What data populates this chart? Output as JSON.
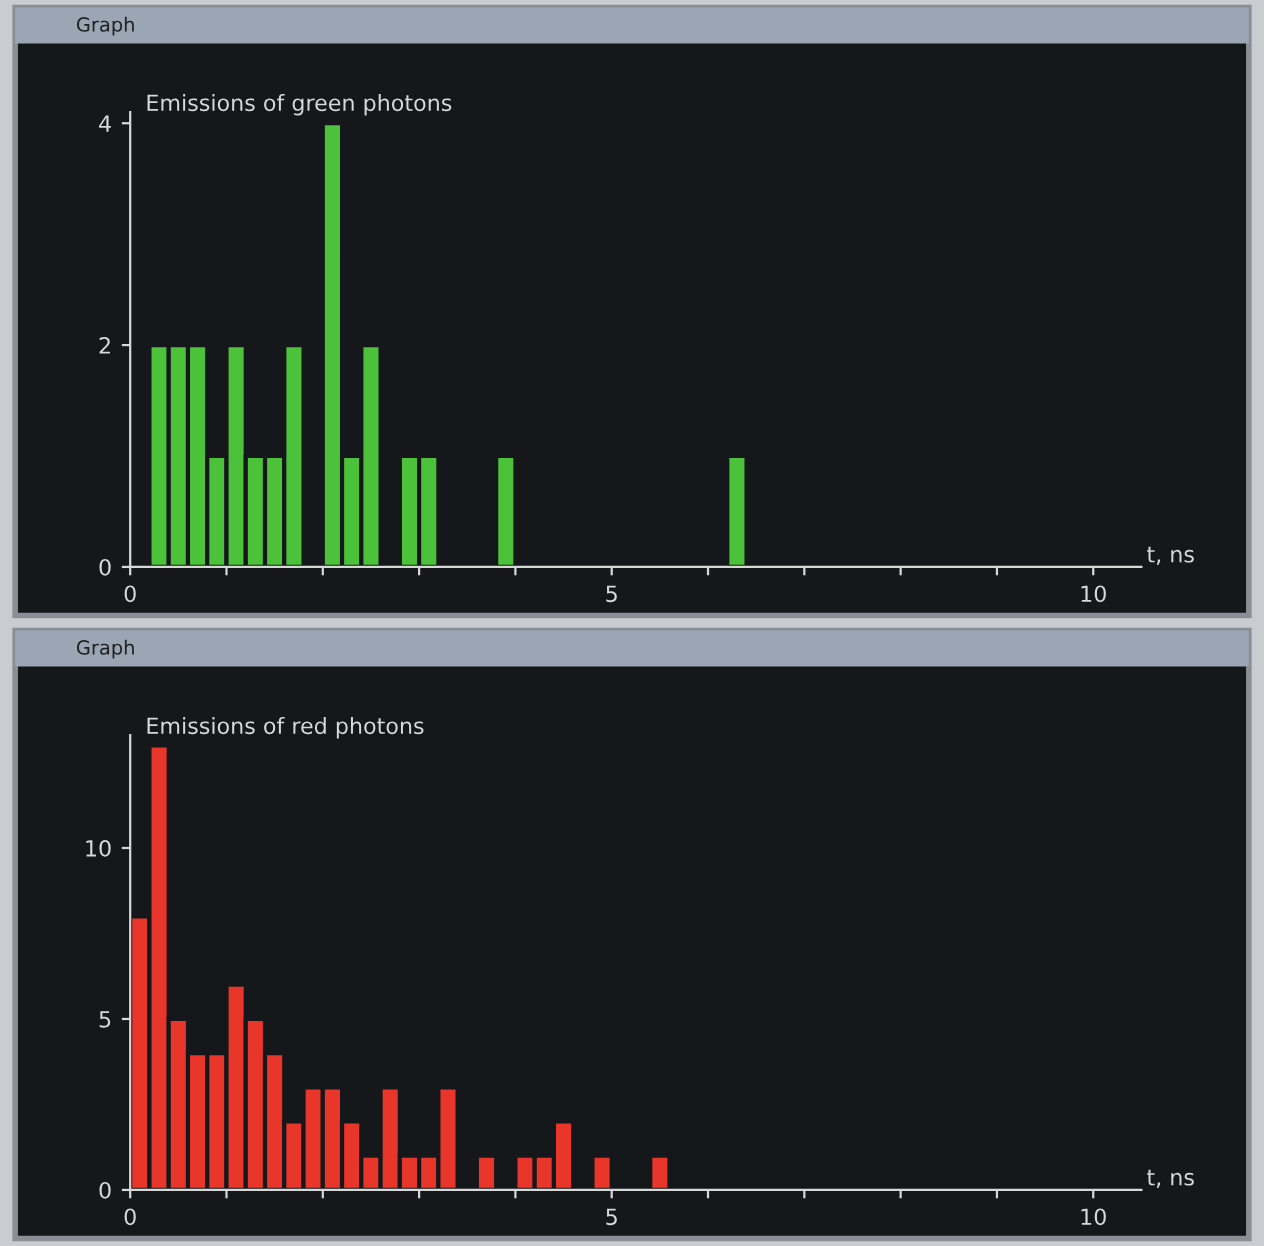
{
  "chart_data": [
    {
      "type": "histogram",
      "title": "Emissions of green photons",
      "xlabel": "t, ns",
      "annotations": [
        "Graph"
      ],
      "color": "#4cc23a",
      "bins": [
        0,
        0.2,
        0.4,
        0.6,
        0.8,
        1.0,
        1.2,
        1.4,
        1.6,
        1.8,
        2.0,
        2.2,
        2.4,
        2.6,
        2.8,
        3.0,
        3.2,
        3.4,
        3.6,
        3.8,
        4.0,
        4.2,
        4.4,
        4.6,
        4.8,
        5.0,
        5.2,
        5.4,
        5.6,
        5.8,
        6.0,
        6.2,
        6.4,
        6.6,
        6.8,
        7.0,
        7.2,
        7.4,
        7.6,
        7.8,
        8.0,
        8.2,
        8.4,
        8.6,
        8.8,
        9.0,
        9.2,
        9.4,
        9.6,
        9.8,
        10.0
      ],
      "values": [
        0,
        2,
        2,
        2,
        1,
        2,
        1,
        1,
        2,
        0,
        4,
        1,
        2,
        0,
        1,
        1,
        0,
        0,
        0,
        1,
        0,
        0,
        0,
        0,
        0,
        0,
        0,
        0,
        0,
        0,
        0,
        1,
        0,
        0,
        0,
        0,
        0,
        0,
        0,
        0,
        0,
        0,
        0,
        0,
        0,
        0,
        0,
        0,
        0,
        0
      ],
      "xlim": [
        0,
        10.5
      ],
      "xticks": [
        0,
        {
          "value": 1,
          "label": null
        },
        {
          "value": 2,
          "label": null
        },
        {
          "value": 3,
          "label": null
        },
        {
          "value": 4,
          "label": null
        },
        5,
        {
          "value": 6,
          "label": null
        },
        {
          "value": 7,
          "label": null
        },
        {
          "value": 8,
          "label": null
        },
        {
          "value": 9,
          "label": null
        },
        10
      ],
      "ylim": [
        0,
        4.1
      ],
      "yticks": [
        0,
        2,
        4
      ],
      "grid": false,
      "legend": false
    },
    {
      "type": "histogram",
      "title": "Emissions of red photons",
      "xlabel": "t, ns",
      "annotations": [
        "Graph"
      ],
      "color": "#e8362a",
      "bins": [
        0,
        0.2,
        0.4,
        0.6,
        0.8,
        1.0,
        1.2,
        1.4,
        1.6,
        1.8,
        2.0,
        2.2,
        2.4,
        2.6,
        2.8,
        3.0,
        3.2,
        3.4,
        3.6,
        3.8,
        4.0,
        4.2,
        4.4,
        4.6,
        4.8,
        5.0,
        5.2,
        5.4,
        5.6,
        5.8,
        6.0,
        6.2,
        6.4,
        6.6,
        6.8,
        7.0,
        7.2,
        7.4,
        7.6,
        7.8,
        8.0,
        8.2,
        8.4,
        8.6,
        8.8,
        9.0,
        9.2,
        9.4,
        9.6,
        9.8,
        10.0
      ],
      "values": [
        8,
        13,
        5,
        4,
        4,
        6,
        5,
        4,
        2,
        3,
        3,
        2,
        1,
        3,
        1,
        1,
        3,
        0,
        1,
        0,
        1,
        1,
        2,
        0,
        1,
        0,
        0,
        1,
        0,
        0,
        0,
        0,
        0,
        0,
        0,
        0,
        0,
        0,
        0,
        0,
        0,
        0,
        0,
        0,
        0,
        0,
        0,
        0,
        0,
        0
      ],
      "xlim": [
        0,
        10.5
      ],
      "xticks": [
        0,
        {
          "value": 1,
          "label": null
        },
        {
          "value": 2,
          "label": null
        },
        {
          "value": 3,
          "label": null
        },
        {
          "value": 4,
          "label": null
        },
        5,
        {
          "value": 6,
          "label": null
        },
        {
          "value": 7,
          "label": null
        },
        {
          "value": 8,
          "label": null
        },
        {
          "value": 9,
          "label": null
        },
        10
      ],
      "ylim": [
        0,
        13.3
      ],
      "yticks": [
        0,
        5,
        10
      ],
      "grid": false,
      "legend": false
    }
  ]
}
